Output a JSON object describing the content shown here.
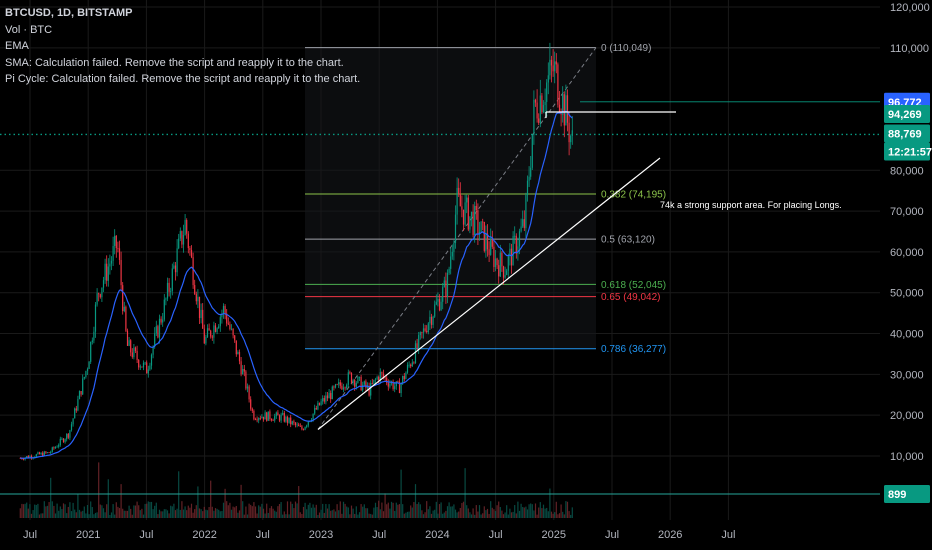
{
  "legend": {
    "symbol": "BTCUSD, 1D, BITSTAMP",
    "rows": [
      "Vol · BTC",
      "EMA",
      "SMA: Calculation failed. Remove the script and reapply it to the chart.",
      "Pi Cycle: Calculation failed. Remove the script and reapply it to the chart."
    ]
  },
  "chart_data": {
    "type": "candlestick",
    "x_ticks": [
      "Jul",
      "2021",
      "Jul",
      "2022",
      "Jul",
      "2023",
      "Jul",
      "2024",
      "Jul",
      "2025",
      "Jul",
      "2026",
      "Jul"
    ],
    "y_ticks": [
      "10,000",
      "20,000",
      "30,000",
      "40,000",
      "50,000",
      "60,000",
      "70,000",
      "80,000",
      "110,000",
      "120,000"
    ],
    "ylim": [
      0,
      120000
    ],
    "price_path": [
      [
        "2020-06",
        9500
      ],
      [
        "2020-09",
        10800
      ],
      [
        "2020-11",
        15500
      ],
      [
        "2020-12",
        24000
      ],
      [
        "2021-01",
        33000
      ],
      [
        "2021-02",
        50000
      ],
      [
        "2021-04",
        62000
      ],
      [
        "2021-05",
        37000
      ],
      [
        "2021-07",
        31000
      ],
      [
        "2021-09",
        48000
      ],
      [
        "2021-11",
        67000
      ],
      [
        "2022-01",
        38000
      ],
      [
        "2022-03",
        46000
      ],
      [
        "2022-05",
        30000
      ],
      [
        "2022-06",
        20000
      ],
      [
        "2022-09",
        19500
      ],
      [
        "2022-11",
        16500
      ],
      [
        "2023-01",
        23000
      ],
      [
        "2023-04",
        29500
      ],
      [
        "2023-06",
        26000
      ],
      [
        "2023-07",
        30000
      ],
      [
        "2023-09",
        26500
      ],
      [
        "2023-11",
        37000
      ],
      [
        "2023-12",
        43000
      ],
      [
        "2024-02",
        52000
      ],
      [
        "2024-03",
        72000
      ],
      [
        "2024-05",
        67000
      ],
      [
        "2024-07",
        58000
      ],
      [
        "2024-08",
        56000
      ],
      [
        "2024-10",
        67000
      ],
      [
        "2024-11",
        95000
      ],
      [
        "2024-12",
        100000
      ],
      [
        "2025-01",
        105000
      ],
      [
        "2025-02",
        96000
      ],
      [
        "2025-03",
        86000
      ]
    ],
    "fibonacci": [
      {
        "level": "0",
        "price": "110,049",
        "color": "#a0a3ab"
      },
      {
        "level": "0.382",
        "price": "74,195",
        "color": "#8bc34a"
      },
      {
        "level": "0.5",
        "price": "63,120",
        "color": "#a0a3ab"
      },
      {
        "level": "0.618",
        "price": "52,045",
        "color": "#4caf50"
      },
      {
        "level": "0.65",
        "price": "49,042",
        "color": "#f23645"
      },
      {
        "level": "0.786",
        "price": "36,277",
        "color": "#2196f3"
      }
    ],
    "price_tags": [
      {
        "label": "96,772",
        "color": "#2962ff"
      },
      {
        "label": "94,269",
        "color": "#089981"
      },
      {
        "label": "88,769",
        "color": "#089981"
      },
      {
        "label": "12:21:57",
        "color": "#089981"
      },
      {
        "label": "899",
        "color": "#089981"
      }
    ],
    "annotation": "74k a strong support area. For placing Longs.",
    "colors": {
      "up": "#089981",
      "down": "#f23645",
      "ema": "#2962ff",
      "grid": "#1a1a1a"
    }
  }
}
